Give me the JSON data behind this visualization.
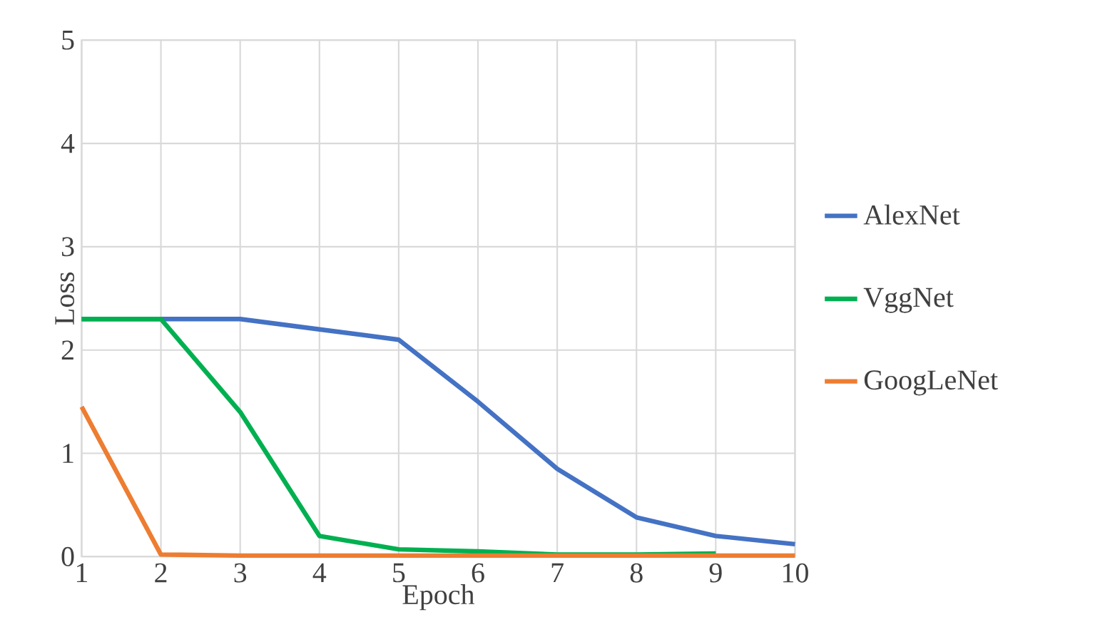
{
  "chart_data": {
    "type": "line",
    "xlabel": "Epoch",
    "ylabel": "Loss",
    "x": [
      1,
      2,
      3,
      4,
      5,
      6,
      7,
      8,
      9,
      10
    ],
    "xlim": [
      1,
      10
    ],
    "xticks": [
      1,
      2,
      3,
      4,
      5,
      6,
      7,
      8,
      9,
      10
    ],
    "ylim": [
      0,
      5
    ],
    "yticks": [
      0,
      1,
      2,
      3,
      4,
      5
    ],
    "grid": true,
    "legend": "right",
    "series": [
      {
        "name": "AlexNet",
        "color": "#4472c4",
        "values": [
          2.3,
          2.3,
          2.3,
          2.2,
          2.1,
          1.5,
          0.85,
          0.38,
          0.2,
          0.12
        ]
      },
      {
        "name": "VggNet",
        "color": "#00b050",
        "values": [
          2.3,
          2.3,
          1.4,
          0.2,
          0.07,
          0.05,
          0.02,
          0.02,
          0.03,
          null
        ]
      },
      {
        "name": "GoogLeNet",
        "color": "#ed7d31",
        "values": [
          1.45,
          0.02,
          0.01,
          0.01,
          0.01,
          0.01,
          0.01,
          0.01,
          0.01,
          0.01
        ]
      }
    ]
  }
}
